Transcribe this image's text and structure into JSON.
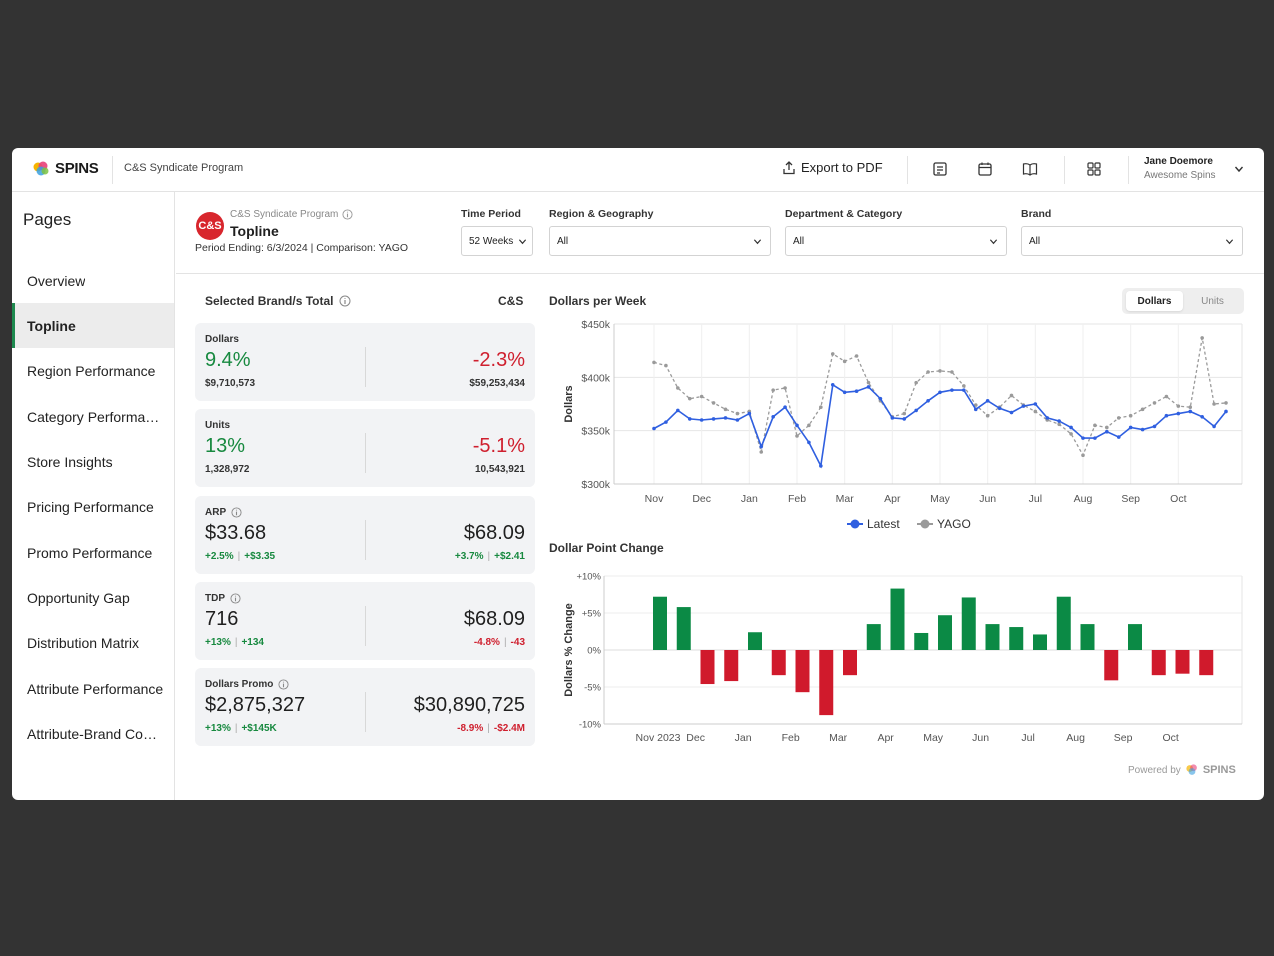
{
  "header": {
    "logo_text": "SPINS",
    "program": "C&S Syndicate Program",
    "export_label": "Export to PDF",
    "user_name": "Jane Doemore",
    "user_org": "Awesome Spins"
  },
  "sidebar": {
    "title": "Pages",
    "items": [
      {
        "label": "Overview"
      },
      {
        "label": "Topline",
        "active": true
      },
      {
        "label": "Region Performance"
      },
      {
        "label": "Category Performance"
      },
      {
        "label": "Store Insights"
      },
      {
        "label": "Pricing Performance"
      },
      {
        "label": "Promo Performance"
      },
      {
        "label": "Opportunity Gap"
      },
      {
        "label": "Distribution Matrix"
      },
      {
        "label": "Attribute Performance"
      },
      {
        "label": "Attribute-Brand Comparison"
      }
    ]
  },
  "page": {
    "badge_text": "C&S",
    "program_small": "C&S Syndicate Program",
    "title": "Topline",
    "period": "Period Ending: 6/3/2024 | Comparison: YAGO"
  },
  "filters": [
    {
      "label": "Time Period",
      "value": "52 Weeks"
    },
    {
      "label": "Region & Geography",
      "value": "All"
    },
    {
      "label": "Department & Category",
      "value": "All"
    },
    {
      "label": "Brand",
      "value": "All"
    }
  ],
  "summary": {
    "title": "Selected Brand/s Total",
    "cs_title": "C&S",
    "cards": [
      {
        "label": "Dollars",
        "left_big": "9.4%",
        "left_small": "$9,710,573",
        "right_big": "-2.3%",
        "right_small": "$59,253,434"
      },
      {
        "label": "Units",
        "left_big": "13%",
        "left_small": "1,328,972",
        "right_big": "-5.1%",
        "right_small": "10,543,921"
      },
      {
        "label": "ARP",
        "left_big": "$33.68",
        "left_pct": "+2.5%",
        "left_abs": "+$3.35",
        "right_big": "$68.09",
        "right_pct": "+3.7%",
        "right_abs": "+$2.41"
      },
      {
        "label": "TDP",
        "left_big": "716",
        "left_pct": "+13%",
        "left_abs": "+134",
        "right_big": "$68.09",
        "right_pct": "-4.8%",
        "right_abs": "-43"
      },
      {
        "label": "Dollars Promo",
        "left_big": "$2,875,327",
        "left_pct": "+13%",
        "left_abs": "+$145K",
        "right_big": "$30,890,725",
        "right_pct": "-8.9%",
        "right_abs": "-$2.4M"
      }
    ]
  },
  "toggle": {
    "on": "Dollars",
    "off": "Units"
  },
  "powered": {
    "prefix": "Powered by",
    "brand": "SPINS"
  },
  "chart_data": [
    {
      "type": "line",
      "title": "Dollars per Week",
      "ylabel": "Dollars",
      "ylim": [
        300,
        450
      ],
      "yticks": [
        300,
        350,
        400,
        450
      ],
      "ytick_labels": [
        "$300k",
        "$350k",
        "$400k",
        "$450k"
      ],
      "month_labels": [
        "Nov",
        "Dec",
        "Jan",
        "Feb",
        "Mar",
        "Apr",
        "May",
        "Jun",
        "Jul",
        "Aug",
        "Sep",
        "Oct"
      ],
      "month_week_index": [
        0,
        4,
        8,
        12,
        16,
        20,
        24,
        28,
        32,
        36,
        40,
        44
      ],
      "legend": "bottom-center",
      "colors": {
        "Latest": "#2f5fe0",
        "YAGO": "#9a9a9a"
      },
      "series": [
        {
          "name": "Latest",
          "values": [
            352,
            358,
            369,
            361,
            360,
            361,
            362,
            360,
            366,
            335,
            363,
            372,
            355,
            339,
            317,
            393,
            386,
            387,
            391,
            380,
            362,
            361,
            369,
            378,
            386,
            388,
            388,
            370,
            378,
            371,
            367,
            373,
            375,
            362,
            359,
            353,
            343,
            343,
            349,
            344,
            353,
            351,
            354,
            364,
            366,
            368,
            363,
            354,
            368
          ]
        },
        {
          "name": "YAGO",
          "values": [
            414,
            411,
            390,
            380,
            382,
            376,
            370,
            366,
            368,
            330,
            388,
            390,
            345,
            355,
            372,
            422,
            415,
            420,
            395,
            378,
            363,
            366,
            395,
            405,
            406,
            405,
            392,
            374,
            364,
            372,
            383,
            374,
            368,
            360,
            356,
            347,
            327,
            355,
            353,
            362,
            364,
            370,
            376,
            382,
            373,
            372,
            437,
            375,
            376
          ]
        }
      ]
    },
    {
      "type": "bar",
      "title": "Dollar Point Change",
      "ylabel": "Dollars % Change",
      "ylim": [
        -10,
        10
      ],
      "yticks": [
        -10,
        -5,
        0,
        5,
        10
      ],
      "ytick_labels": [
        "-10%",
        "-5%",
        "0%",
        "+5%",
        "+10%"
      ],
      "month_labels": [
        "Nov 2023",
        "Dec",
        "Jan",
        "Feb",
        "Mar",
        "Apr",
        "May",
        "Jun",
        "Jul",
        "Aug",
        "Sep",
        "Oct"
      ],
      "colors": {
        "positive": "#0b8a45",
        "negative": "#d01a2c"
      },
      "values": [
        7.2,
        5.8,
        -4.6,
        -4.2,
        2.4,
        -3.4,
        -5.7,
        -8.8,
        -3.4,
        3.5,
        8.3,
        2.3,
        4.7,
        7.1,
        3.5,
        3.1,
        2.1,
        7.2,
        3.5,
        -4.1,
        3.5,
        -3.4,
        -3.2,
        -3.4
      ]
    }
  ]
}
